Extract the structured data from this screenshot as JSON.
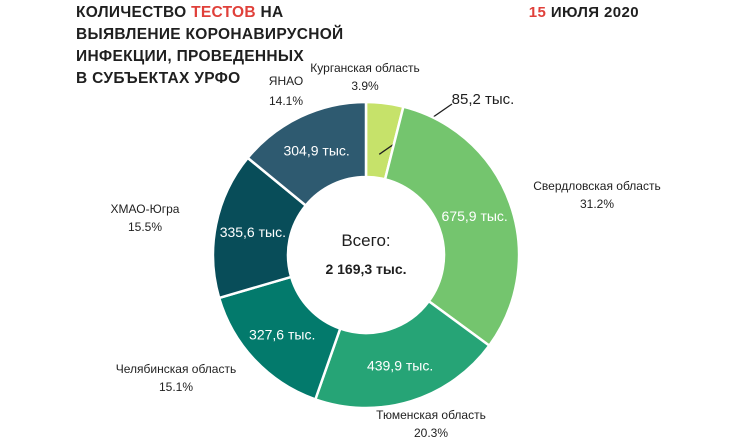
{
  "header": {
    "title_line1_pre": "КОЛИЧЕСТВО ",
    "title_line1_accent": "ТЕСТОВ",
    "title_line1_post": " НА",
    "title_line2": "ВЫЯВЛЕНИЕ КОРОНАВИРУСНОЙ",
    "title_line3": "ИНФЕКЦИИ, ПРОВЕДЕННЫХ",
    "title_line4": "В СУБЪЕКТАХ УРФО",
    "date_day": "15",
    "date_rest": " ИЮЛЯ 2020",
    "accent_color": "#e0403a"
  },
  "chart_data": {
    "type": "pie",
    "donut": true,
    "center_label": "Всего:",
    "center_total": "2 169,3 тыс.",
    "slices": [
      {
        "name": "Курганская область",
        "percent_label": "3.9%",
        "value": 85.2,
        "value_label": "85,2 тыс.",
        "color": "#c6e26a"
      },
      {
        "name": "Свердловская область",
        "percent_label": "31.2%",
        "value": 675.9,
        "value_label": "675,9 тыс.",
        "color": "#74c56e"
      },
      {
        "name": "Тюменская область",
        "percent_label": "20.3%",
        "value": 439.9,
        "value_label": "439,9 тыс.",
        "color": "#26a476"
      },
      {
        "name": "Челябинская область",
        "percent_label": "15.1%",
        "value": 327.6,
        "value_label": "327,6 тыс.",
        "color": "#037a6c"
      },
      {
        "name": "ХМАО-Югра",
        "percent_label": "15.5%",
        "value": 335.6,
        "value_label": "335,6 тыс.",
        "color": "#084d59"
      },
      {
        "name": "ЯНАО",
        "percent_label": "14.1%",
        "value": 304.9,
        "value_label": "304,9 тыс.",
        "color": "#2e5a70"
      }
    ]
  }
}
